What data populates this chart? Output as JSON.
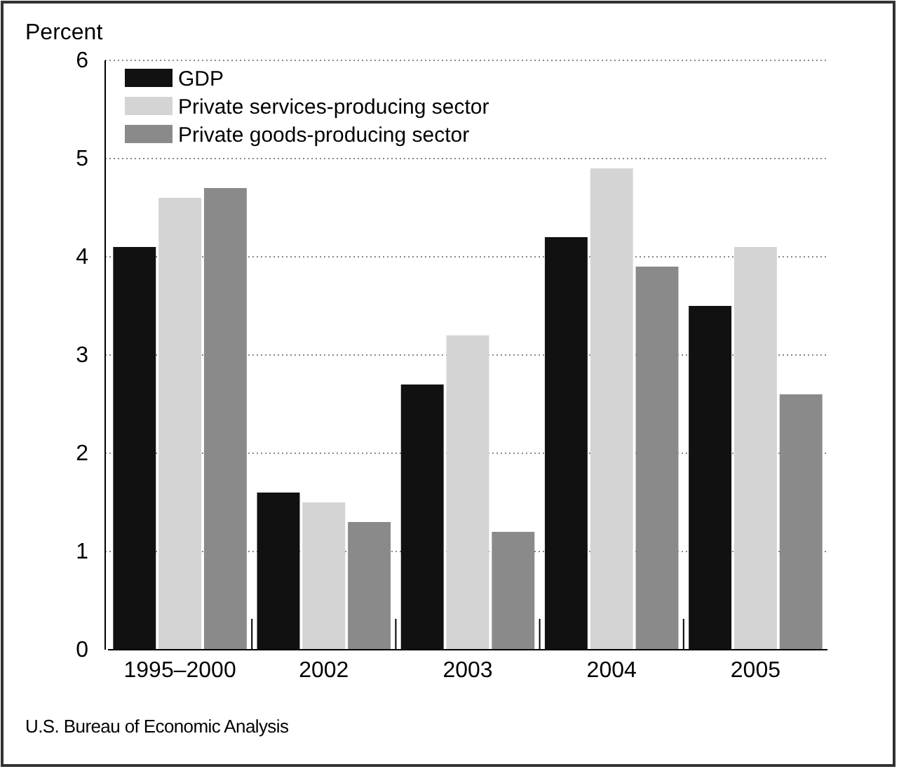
{
  "chart_data": {
    "type": "bar",
    "ylabel": "Percent",
    "categories": [
      "1995–2000",
      "2002",
      "2003",
      "2004",
      "2005"
    ],
    "series": [
      {
        "name": "GDP",
        "color": "#111111",
        "values": [
          4.1,
          1.6,
          2.7,
          4.2,
          3.5
        ]
      },
      {
        "name": "Private services-producing sector",
        "color": "#d4d4d4",
        "values": [
          4.6,
          1.5,
          3.2,
          4.9,
          4.1
        ]
      },
      {
        "name": "Private goods-producing sector",
        "color": "#8a8a8a",
        "values": [
          4.7,
          1.3,
          1.2,
          3.9,
          2.6
        ]
      }
    ],
    "ylim": [
      0,
      6
    ],
    "yticks": [
      0,
      1,
      2,
      3,
      4,
      5,
      6
    ],
    "grid": "y",
    "legend": "top left",
    "annotations": [
      "U.S. Bureau of Economic Analysis"
    ]
  }
}
